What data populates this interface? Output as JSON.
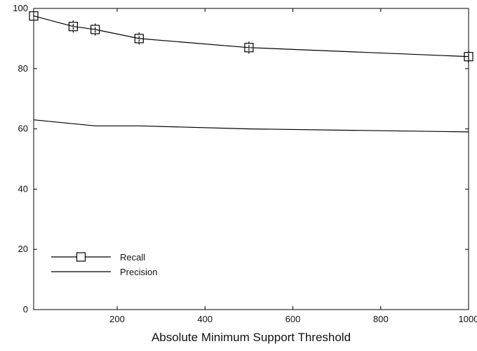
{
  "chart_data": {
    "type": "line",
    "title": "",
    "xlabel": "Absolute Minimum Support Threshold",
    "ylabel": "",
    "xlim": [
      10,
      1000
    ],
    "ylim": [
      0,
      100
    ],
    "x_ticks": [
      200,
      400,
      600,
      800,
      1000
    ],
    "y_ticks": [
      0,
      20,
      40,
      60,
      80,
      100
    ],
    "grid": false,
    "legend_position": "bottom-left",
    "series": [
      {
        "name": "Recall",
        "marker": "square-with-error-bars",
        "color": "#000000",
        "x": [
          10,
          100,
          150,
          250,
          500,
          1000
        ],
        "y": [
          97.5,
          94,
          93,
          90,
          87,
          84
        ],
        "error": [
          0.5,
          2,
          2,
          2,
          2,
          2
        ]
      },
      {
        "name": "Precision",
        "marker": "none",
        "color": "#000000",
        "x": [
          10,
          150,
          250,
          500,
          1000
        ],
        "y": [
          63,
          61,
          61,
          60,
          59
        ],
        "error": []
      }
    ]
  }
}
